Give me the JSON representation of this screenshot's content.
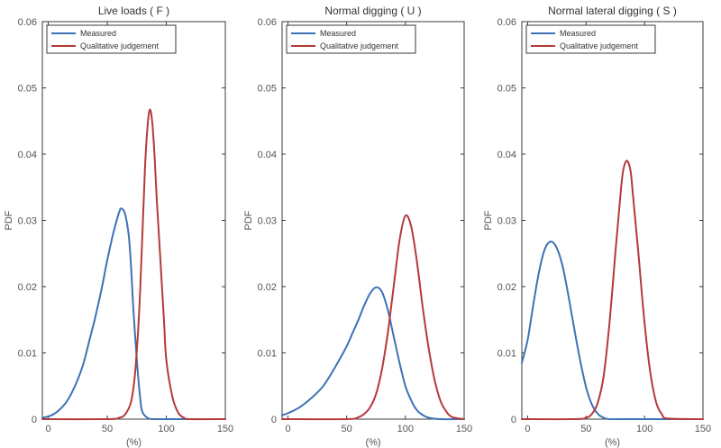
{
  "chart_data": [
    {
      "type": "line",
      "title": "Live loads ( F )",
      "xlabel": "(%)",
      "ylabel": "PDF",
      "xlim": [
        -5,
        150
      ],
      "ylim": [
        0,
        0.06
      ],
      "xticks": [
        "0",
        "50",
        "100",
        "150"
      ],
      "yticks": [
        "0",
        "0.01",
        "0.02",
        "0.03",
        "0.04",
        "0.05",
        "0.06"
      ],
      "grid": false,
      "legend": "top-left",
      "colors": {
        "Measured": "#3d72b4",
        "Qualitative judgement": "#b5393a"
      },
      "series": [
        {
          "name": "Measured",
          "x": [
            -5,
            0,
            5,
            10,
            15,
            20,
            25,
            30,
            35,
            40,
            45,
            50,
            55,
            60,
            62,
            65,
            68,
            70,
            72,
            75,
            78,
            80,
            85,
            90,
            100,
            150
          ],
          "y": [
            0.0002,
            0.0004,
            0.0008,
            0.0015,
            0.0025,
            0.004,
            0.006,
            0.0085,
            0.012,
            0.0155,
            0.0195,
            0.024,
            0.028,
            0.0312,
            0.0318,
            0.031,
            0.028,
            0.0235,
            0.017,
            0.009,
            0.003,
            0.001,
            0.0001,
            0,
            0,
            0
          ]
        },
        {
          "name": "Qualitative judgement",
          "x": [
            -5,
            50,
            60,
            65,
            70,
            73,
            76,
            78,
            80,
            82,
            84,
            86,
            88,
            90,
            92,
            95,
            98,
            100,
            105,
            110,
            115,
            120,
            150
          ],
          "y": [
            0,
            0,
            0.0002,
            0.0007,
            0.0025,
            0.006,
            0.013,
            0.02,
            0.029,
            0.038,
            0.044,
            0.0467,
            0.045,
            0.04,
            0.033,
            0.024,
            0.015,
            0.009,
            0.0035,
            0.001,
            0.0002,
            0,
            0
          ]
        }
      ]
    },
    {
      "type": "line",
      "title": "Normal digging ( U )",
      "xlabel": "(%)",
      "ylabel": "PDF",
      "xlim": [
        -5,
        150
      ],
      "ylim": [
        0,
        0.06
      ],
      "xticks": [
        "0",
        "50",
        "100",
        "150"
      ],
      "yticks": [
        "0",
        "0.01",
        "0.02",
        "0.03",
        "0.04",
        "0.05",
        "0.06"
      ],
      "grid": false,
      "legend": "top-left",
      "colors": {
        "Measured": "#3d72b4",
        "Qualitative judgement": "#b5393a"
      },
      "series": [
        {
          "name": "Measured",
          "x": [
            -5,
            0,
            10,
            20,
            30,
            40,
            50,
            55,
            60,
            65,
            70,
            75,
            80,
            85,
            90,
            95,
            100,
            105,
            110,
            115,
            120,
            130,
            150
          ],
          "y": [
            0.0006,
            0.0009,
            0.0018,
            0.0032,
            0.005,
            0.0078,
            0.011,
            0.013,
            0.015,
            0.0172,
            0.019,
            0.0199,
            0.0192,
            0.0165,
            0.0125,
            0.0085,
            0.005,
            0.0028,
            0.0013,
            0.0006,
            0.0002,
            0,
            0
          ]
        },
        {
          "name": "Qualitative judgement",
          "x": [
            -5,
            50,
            60,
            65,
            70,
            75,
            80,
            85,
            90,
            95,
            100,
            105,
            110,
            115,
            120,
            125,
            130,
            135,
            140,
            150
          ],
          "y": [
            0,
            0,
            0.0003,
            0.0008,
            0.0018,
            0.0038,
            0.0075,
            0.013,
            0.02,
            0.027,
            0.0307,
            0.029,
            0.0235,
            0.0165,
            0.0105,
            0.0058,
            0.0027,
            0.0011,
            0.0003,
            0
          ]
        }
      ]
    },
    {
      "type": "line",
      "title": "Normal lateral digging ( S )",
      "xlabel": "(%)",
      "ylabel": "PDF",
      "xlim": [
        -5,
        150
      ],
      "ylim": [
        0,
        0.06
      ],
      "xticks": [
        "0",
        "50",
        "100",
        "150"
      ],
      "yticks": [
        "0",
        "0.01",
        "0.02",
        "0.03",
        "0.04",
        "0.05",
        "0.06"
      ],
      "grid": false,
      "legend": "top-left",
      "colors": {
        "Measured": "#3d72b4",
        "Qualitative judgement": "#b5393a"
      },
      "series": [
        {
          "name": "Measured",
          "x": [
            -5,
            0,
            5,
            10,
            15,
            20,
            25,
            30,
            35,
            40,
            45,
            50,
            55,
            60,
            65,
            70,
            80,
            150
          ],
          "y": [
            0.0085,
            0.012,
            0.0175,
            0.0225,
            0.0258,
            0.0268,
            0.0258,
            0.023,
            0.0185,
            0.0135,
            0.0088,
            0.0048,
            0.0022,
            0.0008,
            0.0002,
            0,
            0,
            0
          ]
        },
        {
          "name": "Qualitative judgement",
          "x": [
            -5,
            40,
            50,
            55,
            60,
            65,
            70,
            75,
            78,
            80,
            82,
            85,
            88,
            90,
            95,
            100,
            105,
            110,
            115,
            120,
            150
          ],
          "y": [
            0,
            0,
            0.0002,
            0.0008,
            0.0025,
            0.0065,
            0.0145,
            0.025,
            0.031,
            0.035,
            0.0378,
            0.039,
            0.0375,
            0.034,
            0.0245,
            0.0145,
            0.007,
            0.0025,
            0.0007,
            0.0001,
            0
          ]
        }
      ]
    }
  ]
}
